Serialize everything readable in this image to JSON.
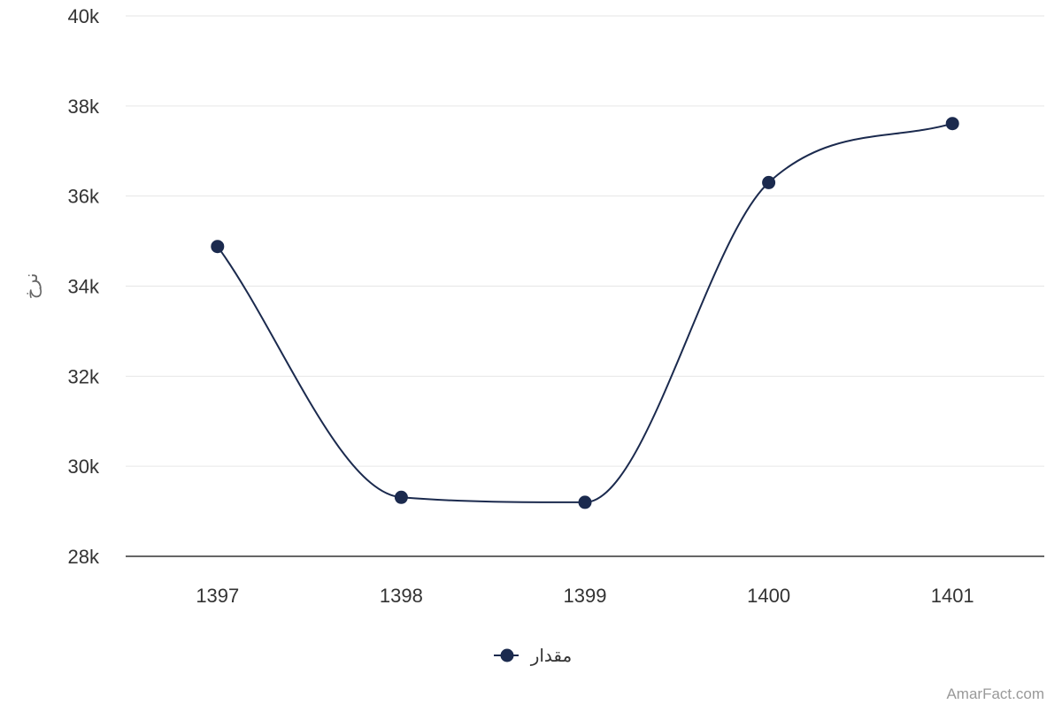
{
  "chart_data": {
    "type": "line",
    "title": "",
    "xlabel": "",
    "ylabel": "نرخ",
    "categories": [
      "1397",
      "1398",
      "1399",
      "1400",
      "1401"
    ],
    "series": [
      {
        "name": "مقدار",
        "values": [
          34880,
          29310,
          29200,
          36300,
          37610
        ],
        "color": "#1b2a4e"
      }
    ],
    "ylim": [
      28000,
      40000
    ],
    "yticks": [
      28000,
      30000,
      32000,
      34000,
      36000,
      38000,
      40000
    ],
    "ytick_labels": [
      "28k",
      "30k",
      "32k",
      "34k",
      "36k",
      "38k",
      "40k"
    ],
    "smooth": true,
    "grid": true,
    "legend_position": "bottom-center",
    "colors": {
      "line": "#1b2a4e",
      "grid": "#e6e6e6",
      "axis": "#333333",
      "text": "#333333"
    }
  },
  "credit": "AmarFact.com"
}
